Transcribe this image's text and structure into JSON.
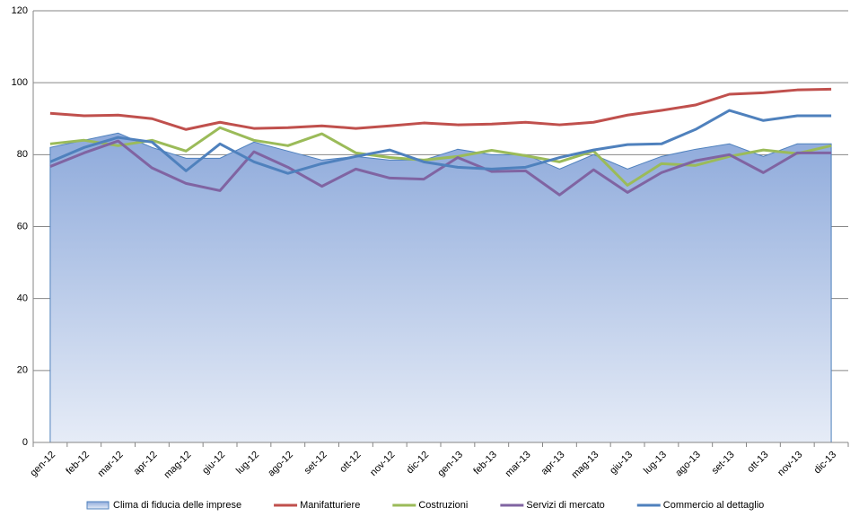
{
  "chart_data": {
    "type": "line",
    "categories": [
      "gen-12",
      "feb-12",
      "mar-12",
      "apr-12",
      "mag-12",
      "giu-12",
      "lug-12",
      "ago-12",
      "set-12",
      "ott-12",
      "nov-12",
      "dic-12",
      "gen-13",
      "feb-13",
      "mar-13",
      "apr-13",
      "mag-13",
      "giu-13",
      "lug-13",
      "ago-13",
      "set-13",
      "ott-13",
      "nov-13",
      "dic-13"
    ],
    "series": [
      {
        "name": "Clima di fiducia delle imprese",
        "type": "area",
        "color": "#4f81bd",
        "values": [
          82,
          84,
          86,
          82,
          79,
          79,
          83.5,
          81,
          78.5,
          79.5,
          78.5,
          78.5,
          81.5,
          80,
          80,
          76,
          80,
          76,
          79.5,
          81.5,
          83,
          79.5,
          83,
          83
        ]
      },
      {
        "name": "Manifatturiere",
        "color": "#c0504d",
        "values": [
          91.5,
          90.8,
          91,
          90,
          87,
          89,
          87.3,
          87.5,
          88,
          87.3,
          88,
          88.8,
          88.3,
          88.5,
          89,
          88.3,
          89,
          91,
          92.3,
          93.8,
          96.8,
          97.2,
          98,
          98.2
        ]
      },
      {
        "name": "Costruzioni",
        "color": "#9bbb59",
        "values": [
          83,
          84,
          82.5,
          84,
          81,
          87.5,
          84,
          82.5,
          85.8,
          80.5,
          79.2,
          78.5,
          79.5,
          81.2,
          79.7,
          78,
          81,
          71.5,
          77.5,
          77,
          79.5,
          81.3,
          80.3,
          82.5
        ]
      },
      {
        "name": "Servizi di mercato",
        "color": "#8064a2",
        "values": [
          76.7,
          80.5,
          83.8,
          76.3,
          72,
          70,
          80.8,
          76.5,
          71.2,
          76,
          73.5,
          73.2,
          79.2,
          75.3,
          75.5,
          68.8,
          75.8,
          69.5,
          75,
          78.3,
          80,
          75,
          80.5,
          80.5
        ]
      },
      {
        "name": "Commercio al dettaglio",
        "color": "#4f81bd",
        "values": [
          78,
          82,
          84.8,
          83.5,
          75.5,
          83,
          78,
          74.8,
          77.5,
          79.5,
          81.3,
          78,
          76.5,
          76,
          76.5,
          79.2,
          81.3,
          82.8,
          83,
          87,
          92.3,
          89.5,
          90.8,
          90.8
        ]
      }
    ],
    "ylim": [
      0,
      120
    ],
    "yticks": [
      0,
      20,
      40,
      60,
      80,
      100,
      120
    ],
    "grid": true,
    "legend": "bottom"
  }
}
